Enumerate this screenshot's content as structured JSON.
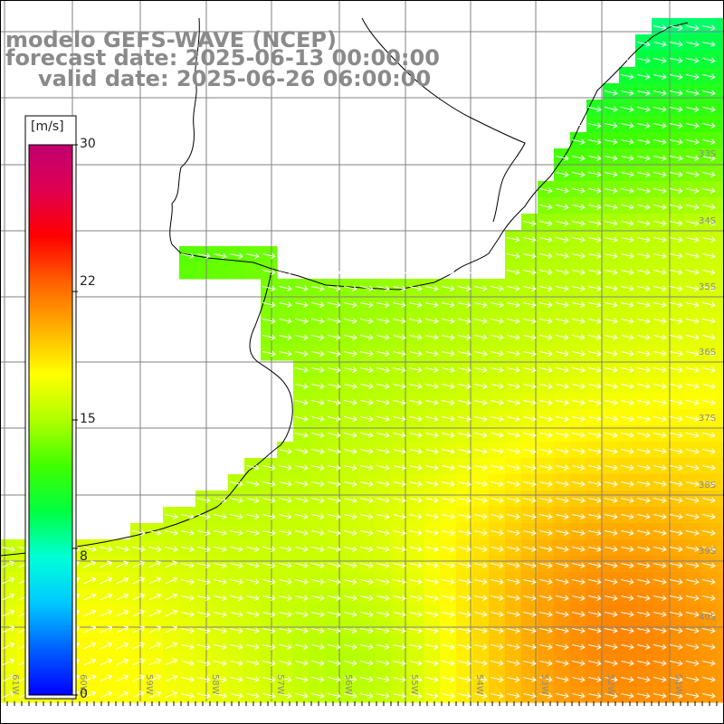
{
  "title": {
    "model": "modelo GEFS-WAVE (NCEP)",
    "forecast": "forecast date: 2025-06-13 00:00:00",
    "valid": "valid date: 2025-06-26 06:00:00"
  },
  "colorbar": {
    "unit": "[m/s]",
    "min": 0,
    "max": 30,
    "tick_labels": [
      "30",
      "22",
      "15",
      "8",
      "0"
    ],
    "tick_values": [
      30,
      22,
      15,
      8,
      0
    ],
    "colors": [
      "#0000ff",
      "#0060ff",
      "#00c8ff",
      "#00ffd8",
      "#00ff40",
      "#40ff00",
      "#b0ff00",
      "#ffff00",
      "#ffb000",
      "#ff6000",
      "#ff0000",
      "#e00050",
      "#c00070"
    ]
  },
  "lat_labels": [
    "33S",
    "34S",
    "35S",
    "36S",
    "37S",
    "38S",
    "39S",
    "40S"
  ],
  "lon_labels": [
    "61W",
    "60W",
    "59W",
    "58W",
    "57W",
    "56W",
    "55W",
    "54W",
    "53W",
    "52W",
    "51W"
  ],
  "colors": {
    "grid": "#808080",
    "coast": "#000000",
    "arrows": "#ffffff",
    "labels": "#8a8a8a"
  }
}
